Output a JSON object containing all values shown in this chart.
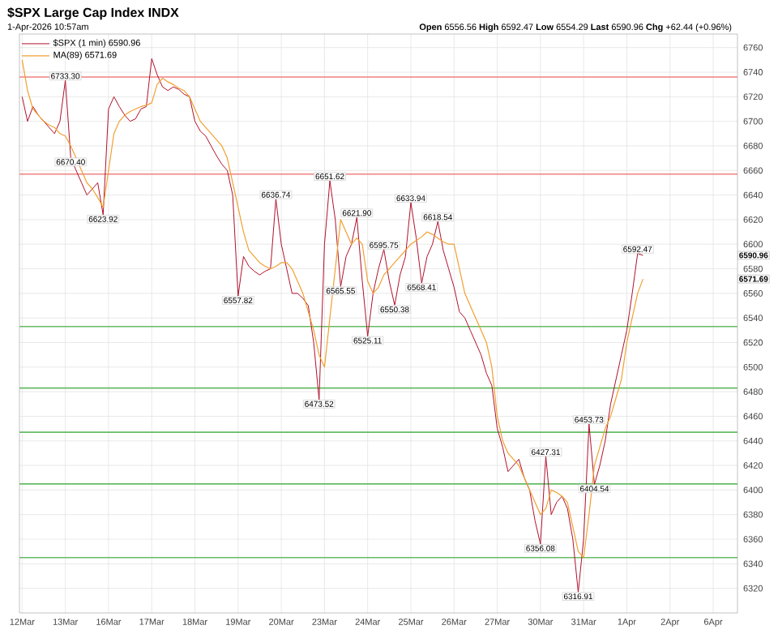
{
  "chart_data": {
    "type": "line",
    "title": "$SPX Large Cap Index INDX",
    "subtitle": "1-Apr-2026 10:57am",
    "categories": [
      "12Mar",
      null,
      null,
      null,
      null,
      null,
      null,
      null,
      "13Mar",
      null,
      null,
      null,
      null,
      null,
      null,
      null,
      "16Mar",
      null,
      null,
      null,
      null,
      null,
      null,
      null,
      "17Mar",
      null,
      null,
      null,
      null,
      null,
      null,
      null,
      "18Mar",
      null,
      null,
      null,
      null,
      null,
      null,
      null,
      "19Mar",
      null,
      null,
      null,
      null,
      null,
      null,
      null,
      "20Mar",
      null,
      null,
      null,
      null,
      null,
      null,
      null,
      "23Mar",
      null,
      null,
      null,
      null,
      null,
      null,
      null,
      "24Mar",
      null,
      null,
      null,
      null,
      null,
      null,
      null,
      "25Mar",
      null,
      null,
      null,
      null,
      null,
      null,
      null,
      "26Mar",
      null,
      null,
      null,
      null,
      null,
      null,
      null,
      "27Mar",
      null,
      null,
      null,
      null,
      null,
      null,
      null,
      "30Mar",
      null,
      null,
      null,
      null,
      null,
      null,
      null,
      "31Mar",
      null,
      null,
      null,
      null,
      null,
      null,
      null,
      "1Apr",
      null,
      null,
      null,
      null,
      null,
      null,
      null,
      "2Apr",
      null,
      null,
      null,
      null,
      null,
      null,
      null,
      "6Apr",
      null,
      null,
      null,
      null
    ],
    "series": [
      {
        "name": "$SPX (1 min) 6590.96",
        "color": "#b0102a",
        "values": [
          6720,
          6700,
          6712,
          6705,
          6700,
          6695,
          6690,
          6700,
          6733.3,
          6670.4,
          6660,
          6650,
          6640,
          6645,
          6650,
          6623.92,
          6710,
          6720,
          6712,
          6705,
          6700,
          6702,
          6710,
          6712,
          6751,
          6738,
          6728,
          6725,
          6728,
          6726,
          6722,
          6720,
          6700,
          6692,
          6688,
          6680,
          6672,
          6665,
          6660,
          6640,
          6557.82,
          6590,
          6582,
          6578,
          6575,
          6578,
          6580,
          6636.74,
          6600,
          6580,
          6560,
          6560,
          6556,
          6550,
          6520,
          6473.52,
          6600,
          6651.62,
          6620,
          6565.55,
          6590,
          6600,
          6621.9,
          6570,
          6525.11,
          6560,
          6580,
          6595.75,
          6570,
          6550.38,
          6575,
          6590,
          6633.94,
          6605,
          6568.41,
          6590,
          6600,
          6618.54,
          6595,
          6580,
          6565,
          6545,
          6540,
          6530,
          6520,
          6510,
          6495,
          6485,
          6450,
          6435,
          6415,
          6420,
          6425,
          6410,
          6400,
          6375,
          6356.08,
          6427.31,
          6380,
          6390,
          6395,
          6385,
          6360,
          6316.91,
          6360,
          6453.73,
          6404.54,
          6420,
          6440,
          6470,
          6490,
          6510,
          6530,
          6560,
          6592.47,
          6590.96,
          null,
          null,
          null,
          null,
          null,
          null,
          null,
          null,
          null,
          null,
          null,
          null,
          null,
          null,
          null,
          null,
          null
        ]
      },
      {
        "name": "MA(89) 6571.69",
        "color": "#f0a030",
        "values": [
          6750,
          6725,
          6710,
          6705,
          6700,
          6697,
          6695,
          6690,
          6688,
          6680,
          6670,
          6660,
          6650,
          6645,
          6638,
          6630,
          6660,
          6690,
          6700,
          6705,
          6708,
          6710,
          6712,
          6713,
          6715,
          6730,
          6735,
          6732,
          6730,
          6727,
          6725,
          6720,
          6710,
          6700,
          6695,
          6690,
          6685,
          6680,
          6670,
          6650,
          6630,
          6610,
          6595,
          6590,
          6585,
          6582,
          6580,
          6582,
          6585,
          6585,
          6580,
          6570,
          6560,
          6545,
          6530,
          6510,
          6500,
          6540,
          6580,
          6620,
          6610,
          6600,
          6605,
          6600,
          6570,
          6560,
          6565,
          6575,
          6580,
          6585,
          6590,
          6595,
          6600,
          6603,
          6606,
          6610,
          6608,
          6605,
          6602,
          6600,
          6600,
          6580,
          6560,
          6550,
          6540,
          6530,
          6520,
          6500,
          6460,
          6440,
          6430,
          6425,
          6420,
          6410,
          6400,
          6390,
          6380,
          6385,
          6400,
          6398,
          6395,
          6390,
          6370,
          6350,
          6345,
          6380,
          6420,
          6435,
          6450,
          6460,
          6475,
          6490,
          6520,
          6540,
          6560,
          6571.69,
          null,
          null,
          null,
          null,
          null,
          null,
          null,
          null,
          null,
          null,
          null,
          null,
          null,
          null,
          null,
          null,
          null
        ]
      }
    ],
    "ylim": [
      6300,
      6771
    ],
    "yticks": [
      6320,
      6340,
      6360,
      6380,
      6400,
      6420,
      6440,
      6460,
      6480,
      6500,
      6520,
      6540,
      6560,
      6580,
      6600,
      6620,
      6640,
      6660,
      6680,
      6700,
      6720,
      6740,
      6760
    ],
    "grid": true,
    "legend": "top left",
    "ref_lines": [
      {
        "axis": "y",
        "value": 6736,
        "color": "#f08080"
      },
      {
        "axis": "y",
        "value": 6657,
        "color": "#f08080"
      },
      {
        "axis": "y",
        "value": 6533,
        "color": "#66bb66"
      },
      {
        "axis": "y",
        "value": 6483,
        "color": "#66bb66"
      },
      {
        "axis": "y",
        "value": 6447,
        "color": "#66bb66"
      },
      {
        "axis": "y",
        "value": 6405,
        "color": "#66bb66"
      },
      {
        "axis": "y",
        "value": 6345,
        "color": "#66bb66"
      }
    ],
    "annotations": [
      "**Open** 6556.56 **High** 6592.47 **Low** 6554.29 **Last** 6590.96 **Chg** +62.44 (+0.96%)",
      "6590.96",
      "6571.69",
      {
        "text": "6733.30",
        "y": 6733.3
      },
      {
        "text": "6670.40",
        "y": 6670.4
      },
      {
        "text": "6623.92",
        "y": 6623.92
      },
      {
        "text": "6557.82",
        "y": 6557.82
      },
      {
        "text": "6636.74",
        "y": 6636.74
      },
      {
        "text": "6473.52",
        "y": 6473.52
      },
      {
        "text": "6651.62",
        "y": 6651.62
      },
      {
        "text": "6565.55",
        "y": 6565.55
      },
      {
        "text": "6621.90",
        "y": 6621.9
      },
      {
        "text": "6525.11",
        "y": 6525.11
      },
      {
        "text": "6595.75",
        "y": 6595.75
      },
      {
        "text": "6550.38",
        "y": 6550.38
      },
      {
        "text": "6633.94",
        "y": 6633.94
      },
      {
        "text": "6568.41",
        "y": 6568.41
      },
      {
        "text": "6618.54",
        "y": 6618.54
      },
      {
        "text": "6356.08",
        "y": 6356.08
      },
      {
        "text": "6427.31",
        "y": 6427.31
      },
      {
        "text": "6316.91",
        "y": 6316.91
      },
      {
        "text": "6453.73",
        "y": 6453.73
      },
      {
        "text": "6404.54",
        "y": 6404.54
      },
      {
        "text": "6592.47",
        "y": 6592.47
      }
    ]
  }
}
